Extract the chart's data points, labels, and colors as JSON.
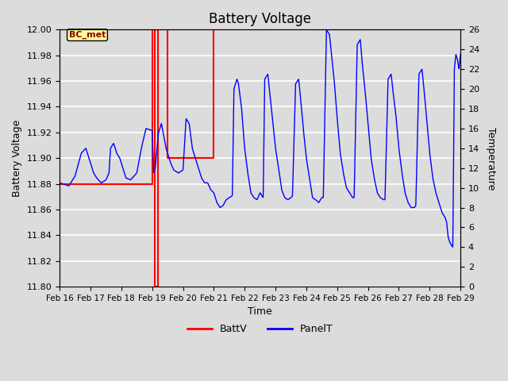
{
  "title": "Battery Voltage",
  "xlabel": "Time",
  "ylabel_left": "Battery Voltage",
  "ylabel_right": "Temperature",
  "ylim_left": [
    11.8,
    12.0
  ],
  "ylim_right": [
    0,
    26
  ],
  "bg_color": "#dcdcdc",
  "plot_bg_color": "#dcdcdc",
  "grid_color": "white",
  "x_tick_labels": [
    "Feb 16",
    "Feb 17",
    "Feb 18",
    "Feb 19",
    "Feb 20",
    "Feb 21",
    "Feb 22",
    "Feb 23",
    "Feb 24",
    "Feb 25",
    "Feb 26",
    "Feb 27",
    "Feb 28",
    "Feb 29"
  ],
  "legend_items": [
    "BattV",
    "PanelT"
  ],
  "legend_colors": [
    "red",
    "blue"
  ],
  "annotation_text": "BC_met",
  "annotation_color": "#8b0000",
  "annotation_bg": "#ffff99",
  "y_ticks_left": [
    11.8,
    11.82,
    11.84,
    11.86,
    11.88,
    11.9,
    11.92,
    11.94,
    11.96,
    11.98,
    12.0
  ],
  "y_ticks_right": [
    0,
    2,
    4,
    6,
    8,
    10,
    12,
    14,
    16,
    18,
    20,
    22,
    24,
    26
  ],
  "batt_x": [
    0.0,
    3.0,
    3.0,
    3.08,
    3.08,
    3.18,
    3.18,
    3.5,
    3.5,
    5.0,
    5.0,
    13.0
  ],
  "batt_y": [
    11.88,
    11.88,
    12.0,
    12.0,
    11.8,
    11.8,
    12.0,
    12.0,
    11.9,
    11.9,
    12.0,
    12.0
  ],
  "panel_t_data": [
    [
      0.0,
      10.5
    ],
    [
      0.3,
      10.2
    ],
    [
      0.5,
      11.2
    ],
    [
      0.7,
      13.5
    ],
    [
      0.85,
      14.0
    ],
    [
      1.0,
      12.5
    ],
    [
      1.1,
      11.5
    ],
    [
      1.2,
      11.0
    ],
    [
      1.35,
      10.5
    ],
    [
      1.5,
      10.8
    ],
    [
      1.6,
      11.5
    ],
    [
      1.65,
      14.0
    ],
    [
      1.75,
      14.5
    ],
    [
      1.85,
      13.5
    ],
    [
      1.95,
      13.0
    ],
    [
      2.0,
      12.5
    ],
    [
      2.15,
      11.0
    ],
    [
      2.3,
      10.8
    ],
    [
      2.5,
      11.5
    ],
    [
      2.65,
      14.0
    ],
    [
      2.8,
      16.0
    ],
    [
      3.0,
      15.8
    ],
    [
      3.05,
      11.5
    ],
    [
      3.1,
      12.0
    ],
    [
      3.2,
      15.5
    ],
    [
      3.3,
      16.5
    ],
    [
      3.45,
      14.0
    ],
    [
      3.5,
      13.5
    ],
    [
      3.6,
      12.5
    ],
    [
      3.7,
      11.8
    ],
    [
      3.85,
      11.5
    ],
    [
      4.0,
      11.8
    ],
    [
      4.1,
      17.0
    ],
    [
      4.2,
      16.5
    ],
    [
      4.3,
      14.0
    ],
    [
      4.5,
      12.0
    ],
    [
      4.6,
      11.0
    ],
    [
      4.7,
      10.5
    ],
    [
      4.8,
      10.5
    ],
    [
      4.9,
      9.8
    ],
    [
      5.0,
      9.5
    ],
    [
      5.1,
      8.5
    ],
    [
      5.2,
      8.0
    ],
    [
      5.3,
      8.2
    ],
    [
      5.4,
      8.8
    ],
    [
      5.5,
      9.0
    ],
    [
      5.6,
      9.2
    ],
    [
      5.65,
      20.0
    ],
    [
      5.75,
      21.0
    ],
    [
      5.8,
      20.5
    ],
    [
      5.9,
      18.0
    ],
    [
      6.0,
      14.0
    ],
    [
      6.1,
      11.5
    ],
    [
      6.2,
      9.5
    ],
    [
      6.3,
      9.0
    ],
    [
      6.4,
      8.8
    ],
    [
      6.5,
      9.5
    ],
    [
      6.6,
      9.0
    ],
    [
      6.65,
      21.0
    ],
    [
      6.75,
      21.5
    ],
    [
      6.8,
      20.0
    ],
    [
      6.9,
      17.0
    ],
    [
      7.0,
      14.0
    ],
    [
      7.1,
      12.0
    ],
    [
      7.2,
      9.8
    ],
    [
      7.3,
      9.0
    ],
    [
      7.4,
      8.8
    ],
    [
      7.5,
      9.0
    ],
    [
      7.55,
      9.2
    ],
    [
      7.65,
      20.5
    ],
    [
      7.75,
      21.0
    ],
    [
      7.8,
      19.5
    ],
    [
      7.9,
      16.0
    ],
    [
      8.0,
      13.0
    ],
    [
      8.1,
      11.0
    ],
    [
      8.2,
      9.0
    ],
    [
      8.3,
      8.8
    ],
    [
      8.4,
      8.5
    ],
    [
      8.5,
      9.0
    ],
    [
      8.55,
      9.0
    ],
    [
      8.65,
      26.0
    ],
    [
      8.75,
      25.5
    ],
    [
      8.8,
      24.0
    ],
    [
      8.9,
      21.0
    ],
    [
      9.0,
      17.0
    ],
    [
      9.1,
      13.5
    ],
    [
      9.2,
      11.5
    ],
    [
      9.3,
      10.0
    ],
    [
      9.4,
      9.5
    ],
    [
      9.5,
      9.0
    ],
    [
      9.55,
      9.0
    ],
    [
      9.65,
      24.5
    ],
    [
      9.75,
      25.0
    ],
    [
      9.8,
      23.0
    ],
    [
      9.9,
      20.0
    ],
    [
      10.0,
      16.5
    ],
    [
      10.1,
      13.0
    ],
    [
      10.2,
      11.0
    ],
    [
      10.3,
      9.5
    ],
    [
      10.4,
      9.0
    ],
    [
      10.5,
      8.8
    ],
    [
      10.55,
      8.8
    ],
    [
      10.65,
      21.0
    ],
    [
      10.75,
      21.5
    ],
    [
      10.8,
      20.0
    ],
    [
      10.9,
      17.5
    ],
    [
      11.0,
      14.0
    ],
    [
      11.1,
      11.5
    ],
    [
      11.2,
      9.5
    ],
    [
      11.3,
      8.5
    ],
    [
      11.4,
      8.0
    ],
    [
      11.5,
      8.0
    ],
    [
      11.55,
      8.2
    ],
    [
      11.65,
      21.5
    ],
    [
      11.75,
      22.0
    ],
    [
      11.8,
      20.5
    ],
    [
      11.9,
      17.0
    ],
    [
      12.0,
      13.5
    ],
    [
      12.1,
      11.0
    ],
    [
      12.2,
      9.5
    ],
    [
      12.3,
      8.5
    ],
    [
      12.4,
      7.5
    ],
    [
      12.5,
      7.0
    ],
    [
      12.55,
      6.5
    ],
    [
      12.6,
      5.0
    ],
    [
      12.65,
      4.5
    ],
    [
      12.7,
      4.2
    ],
    [
      12.75,
      4.0
    ],
    [
      12.8,
      22.0
    ],
    [
      12.85,
      23.5
    ],
    [
      12.9,
      23.0
    ],
    [
      12.95,
      22.0
    ],
    [
      13.0,
      23.5
    ]
  ]
}
